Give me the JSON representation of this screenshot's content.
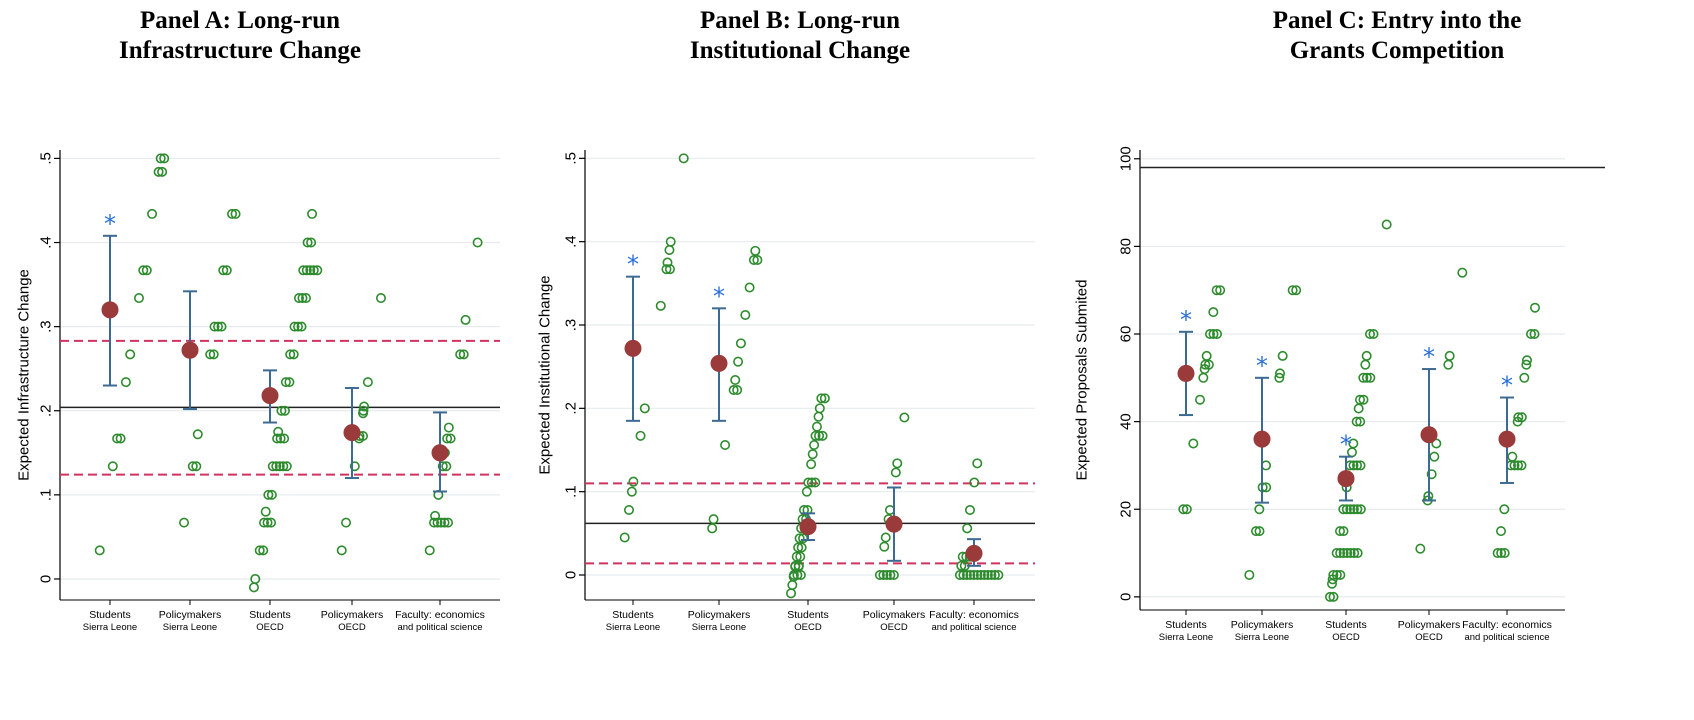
{
  "chart_data": [
    {
      "type": "scatter",
      "title_line1": "Panel A: Long-run",
      "title_line2": "Infrastructure Change",
      "ylabel": "Expected Infrastructure Change",
      "ylim": [
        -0.025,
        0.51
      ],
      "yticks": [
        0,
        0.1,
        0.2,
        0.3,
        0.4,
        0.5
      ],
      "ytick_labels": [
        "0",
        ".1",
        ".2",
        ".3",
        ".4",
        ".5"
      ],
      "rotate_ticks": true,
      "hline_solid": 0.204,
      "hlines_dashed": [
        0.283,
        0.124
      ],
      "categories": [
        {
          "line1": "Students",
          "line2": "Sierra Leone",
          "mean": 0.32,
          "ci": [
            0.23,
            0.408
          ],
          "star": true,
          "points": [
            0.034,
            0.134,
            0.167,
            0.167,
            0.234,
            0.267,
            0.334,
            0.367,
            0.367,
            0.434,
            0.484,
            0.484,
            0.5,
            0.5
          ]
        },
        {
          "line1": "Policymakers",
          "line2": "Sierra Leone",
          "mean": 0.272,
          "ci": [
            0.202,
            0.342
          ],
          "star": false,
          "points": [
            0.067,
            0.134,
            0.134,
            0.172,
            0.267,
            0.267,
            0.3,
            0.3,
            0.3,
            0.367,
            0.367,
            0.434,
            0.434
          ]
        },
        {
          "line1": "Students",
          "line2": "OECD",
          "mean": 0.218,
          "ci": [
            0.186,
            0.248
          ],
          "star": false,
          "points": [
            -0.01,
            0.0,
            0.034,
            0.034,
            0.067,
            0.067,
            0.067,
            0.08,
            0.1,
            0.1,
            0.134,
            0.134,
            0.134,
            0.134,
            0.134,
            0.167,
            0.167,
            0.167,
            0.175,
            0.2,
            0.2,
            0.234,
            0.234,
            0.267,
            0.267,
            0.3,
            0.3,
            0.3,
            0.334,
            0.334,
            0.334,
            0.367,
            0.367,
            0.367,
            0.367,
            0.367,
            0.4,
            0.4,
            0.434
          ]
        },
        {
          "line1": "Policymakers",
          "line2": "OECD",
          "mean": 0.174,
          "ci": [
            0.12,
            0.227
          ],
          "star": false,
          "points": [
            0.034,
            0.067,
            0.134,
            0.167,
            0.17,
            0.17,
            0.197,
            0.2,
            0.205,
            0.234,
            0.334
          ]
        },
        {
          "line1": "Faculty: economics",
          "line2": "and political science",
          "mean": 0.15,
          "ci": [
            0.104,
            0.198
          ],
          "star": false,
          "points": [
            0.034,
            0.067,
            0.067,
            0.067,
            0.067,
            0.067,
            0.075,
            0.1,
            0.134,
            0.134,
            0.15,
            0.167,
            0.167,
            0.18,
            0.267,
            0.267,
            0.308,
            0.4
          ]
        }
      ]
    },
    {
      "type": "scatter",
      "title_line1": "Panel B: Long-run",
      "title_line2": "Institutional Change",
      "ylabel": "Expected Institutional Change",
      "ylim": [
        -0.03,
        0.51
      ],
      "yticks": [
        0,
        0.1,
        0.2,
        0.3,
        0.4,
        0.5
      ],
      "ytick_labels": [
        "0",
        ".1",
        ".2",
        ".3",
        ".4",
        ".5"
      ],
      "rotate_ticks": true,
      "hline_solid": 0.062,
      "hlines_dashed": [
        0.11,
        0.014
      ],
      "categories": [
        {
          "line1": "Students",
          "line2": "Sierra Leone",
          "mean": 0.272,
          "ci": [
            0.185,
            0.358
          ],
          "star": true,
          "points": [
            0.045,
            0.078,
            0.1,
            0.112,
            0.167,
            0.2,
            0.323,
            0.367,
            0.367,
            0.375,
            0.39,
            0.4,
            0.5
          ]
        },
        {
          "line1": "Policymakers",
          "line2": "Sierra Leone",
          "mean": 0.254,
          "ci": [
            0.185,
            0.32
          ],
          "star": true,
          "points": [
            0.056,
            0.067,
            0.156,
            0.222,
            0.222,
            0.234,
            0.256,
            0.278,
            0.312,
            0.345,
            0.378,
            0.378,
            0.389
          ]
        },
        {
          "line1": "Students",
          "line2": "OECD",
          "mean": 0.058,
          "ci": [
            0.042,
            0.074
          ],
          "star": false,
          "points": [
            -0.022,
            -0.012,
            -0.002,
            0.0,
            0.0,
            0.0,
            0.01,
            0.01,
            0.011,
            0.011,
            0.022,
            0.022,
            0.033,
            0.033,
            0.044,
            0.044,
            0.056,
            0.056,
            0.067,
            0.067,
            0.078,
            0.078,
            0.1,
            0.111,
            0.111,
            0.111,
            0.133,
            0.145,
            0.156,
            0.167,
            0.167,
            0.167,
            0.178,
            0.19,
            0.2,
            0.212,
            0.212
          ]
        },
        {
          "line1": "Policymakers",
          "line2": "OECD",
          "mean": 0.061,
          "ci": [
            0.017,
            0.105
          ],
          "star": false,
          "points": [
            0.0,
            0.0,
            0.0,
            0.0,
            0.0,
            0.034,
            0.045,
            0.067,
            0.078,
            0.123,
            0.134,
            0.189
          ]
        },
        {
          "line1": "Faculty: economics",
          "line2": "and political science",
          "mean": 0.026,
          "ci": [
            0.011,
            0.043
          ],
          "star": false,
          "points": [
            0.0,
            0.0,
            0.0,
            0.0,
            0.0,
            0.0,
            0.0,
            0.0,
            0.0,
            0.0,
            0.0,
            0.0,
            0.011,
            0.011,
            0.022,
            0.022,
            0.022,
            0.022,
            0.056,
            0.078,
            0.111,
            0.134
          ]
        }
      ]
    },
    {
      "type": "scatter",
      "title_line1": "Panel C: Entry into the",
      "title_line2": "Grants Competition",
      "ylabel": "Expected Proposals Submited",
      "ylim": [
        -3,
        102
      ],
      "yticks": [
        0,
        20,
        40,
        60,
        80,
        100
      ],
      "ytick_labels": [
        "0",
        "20",
        "40",
        "60",
        "80",
        "100"
      ],
      "rotate_ticks": true,
      "hline_solid": 98,
      "hlines_dashed": [],
      "categories": [
        {
          "line1": "Students",
          "line2": "Sierra Leone",
          "mean": 51,
          "ci": [
            41.5,
            60.5
          ],
          "star": true,
          "points": [
            20,
            20,
            35,
            45,
            50,
            52,
            53,
            53,
            55,
            60,
            60,
            60,
            65,
            70,
            70
          ]
        },
        {
          "line1": "Policymakers",
          "line2": "Sierra Leone",
          "mean": 36,
          "ci": [
            21.5,
            50
          ],
          "star": true,
          "points": [
            5,
            15,
            15,
            20,
            25,
            25,
            30,
            50,
            51,
            55,
            70,
            70
          ]
        },
        {
          "line1": "Students",
          "line2": "OECD",
          "mean": 27,
          "ci": [
            22,
            32
          ],
          "star": true,
          "points": [
            0,
            0,
            3,
            4,
            5,
            5,
            5,
            10,
            10,
            10,
            10,
            10,
            10,
            10,
            15,
            15,
            20,
            20,
            20,
            20,
            20,
            20,
            25,
            30,
            30,
            30,
            30,
            33,
            35,
            40,
            40,
            43,
            45,
            45,
            50,
            50,
            50,
            53,
            55,
            60,
            60,
            85
          ]
        },
        {
          "line1": "Policymakers",
          "line2": "OECD",
          "mean": 37,
          "ci": [
            22,
            52
          ],
          "star": true,
          "points": [
            11,
            22,
            23,
            28,
            32,
            35,
            53,
            55,
            74
          ]
        },
        {
          "line1": "Faculty: economics",
          "line2": "and political science",
          "mean": 36,
          "ci": [
            26,
            45.5
          ],
          "star": true,
          "points": [
            10,
            10,
            10,
            15,
            20,
            30,
            30,
            30,
            30,
            32,
            40,
            41,
            41,
            50,
            53,
            54,
            60,
            60,
            66
          ]
        }
      ]
    }
  ]
}
